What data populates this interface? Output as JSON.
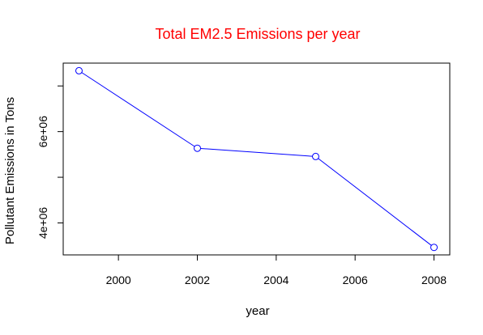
{
  "chart_data": {
    "type": "line",
    "title": "Total EM2.5 Emissions per year",
    "title_color": "#ff0000",
    "xlabel": "year",
    "ylabel": "Pollutant Emissions in Tons",
    "series": [
      {
        "color": "#0000ff",
        "marker": "open-circle",
        "x": [
          1999,
          2002,
          2005,
          2008
        ],
        "y": [
          7332967,
          5635780,
          5454703,
          3464206
        ]
      }
    ],
    "xlim": [
      1998.6,
      2008.4
    ],
    "ylim": [
      3300000,
      7500000
    ],
    "x_ticks": [
      {
        "value": 2000,
        "label": "2000"
      },
      {
        "value": 2002,
        "label": "2002"
      },
      {
        "value": 2004,
        "label": "2004"
      },
      {
        "value": 2006,
        "label": "2006"
      },
      {
        "value": 2008,
        "label": "2008"
      }
    ],
    "y_ticks": [
      {
        "value": 4000000,
        "label": "4e+06"
      },
      {
        "value": 5000000,
        "label": ""
      },
      {
        "value": 6000000,
        "label": "6e+06"
      },
      {
        "value": 7000000,
        "label": ""
      }
    ],
    "grid": false,
    "legend": "none"
  }
}
